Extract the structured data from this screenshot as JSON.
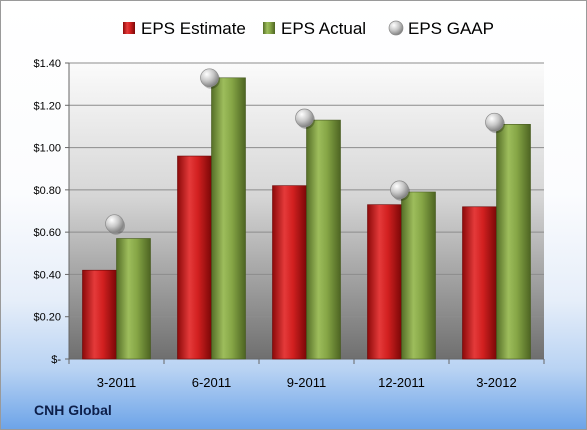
{
  "company": "CNH Global",
  "chart_data": {
    "type": "bar",
    "title": "",
    "xlabel": "",
    "ylabel": "",
    "categories": [
      "3-2011",
      "6-2011",
      "9-2011",
      "12-2011",
      "3-2012"
    ],
    "series": [
      {
        "name": "EPS Estimate",
        "type": "bar",
        "color": "#d42626",
        "values": [
          0.42,
          0.96,
          0.82,
          0.73,
          0.72
        ]
      },
      {
        "name": "EPS Actual",
        "type": "bar",
        "color": "#8aaa4a",
        "values": [
          0.57,
          1.33,
          1.13,
          0.79,
          1.11
        ]
      },
      {
        "name": "EPS GAAP",
        "type": "scatter",
        "color": "#c0c0c0",
        "values": [
          0.64,
          1.33,
          1.14,
          0.8,
          1.12
        ]
      }
    ],
    "ylim": [
      0,
      1.4
    ],
    "yticks": [
      0,
      0.2,
      0.4,
      0.6,
      0.8,
      1.0,
      1.2,
      1.4
    ],
    "ytick_labels": [
      "$-",
      "$0.20",
      "$0.40",
      "$0.60",
      "$0.80",
      "$1.00",
      "$1.20",
      "$1.40"
    ],
    "grid": true,
    "legend_position": "top"
  }
}
